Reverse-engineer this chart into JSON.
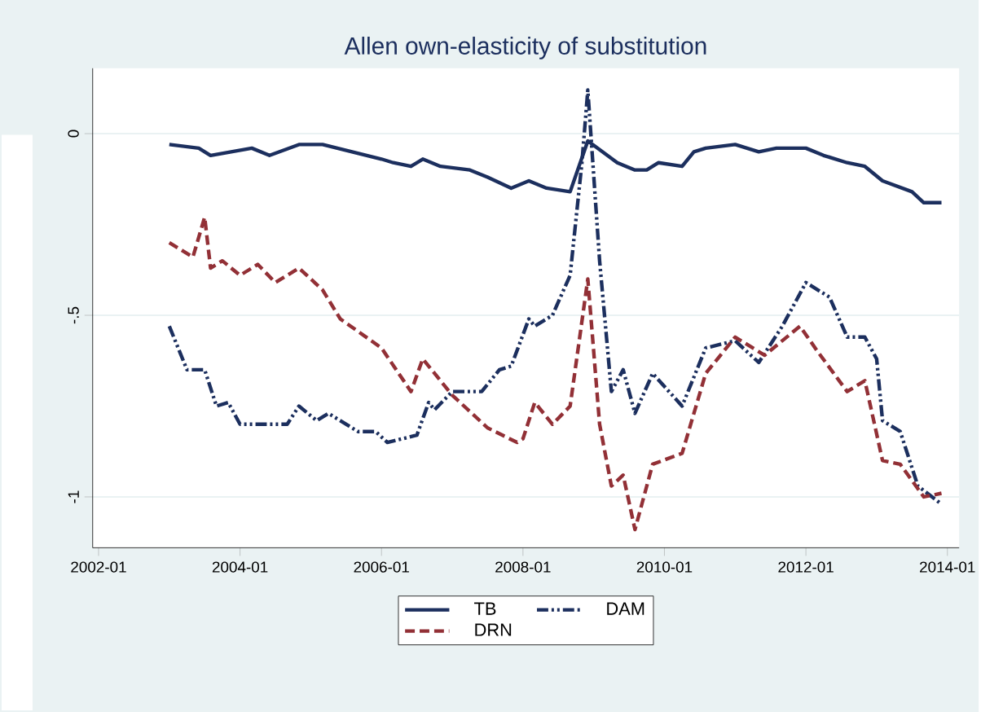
{
  "chart_data": {
    "type": "line",
    "title": "Allen own-elasticity of substitution",
    "xlim": [
      "2001-12",
      "2014-03"
    ],
    "xticks": [
      "2002-01",
      "2004-01",
      "2006-01",
      "2008-01",
      "2010-01",
      "2012-01",
      "2014-01"
    ],
    "ylim": [
      -1.14,
      0.18
    ],
    "yticks": [
      {
        "value": -1,
        "label": "-1"
      },
      {
        "value": -0.5,
        "label": "-.5"
      },
      {
        "value": 0,
        "label": "0"
      }
    ],
    "grid": "y",
    "legend": "bottom",
    "series": [
      {
        "name": "TB",
        "color": "#1c2f5e",
        "line_style": "solid",
        "x": [
          "2003-01",
          "2003-06",
          "2003-08",
          "2004-03",
          "2004-06",
          "2004-11",
          "2005-03",
          "2006-01",
          "2006-03",
          "2006-06",
          "2006-08",
          "2006-11",
          "2007-04",
          "2007-07",
          "2007-11",
          "2008-02",
          "2008-05",
          "2008-09",
          "2008-12",
          "2009-05",
          "2009-08",
          "2009-10",
          "2009-12",
          "2010-04",
          "2010-06",
          "2010-08",
          "2011-01",
          "2011-05",
          "2011-08",
          "2012-01",
          "2012-04",
          "2012-08",
          "2012-11",
          "2013-02",
          "2013-07",
          "2013-09",
          "2013-12"
        ],
        "values": [
          -0.03,
          -0.04,
          -0.06,
          -0.04,
          -0.06,
          -0.03,
          -0.03,
          -0.07,
          -0.08,
          -0.09,
          -0.07,
          -0.09,
          -0.1,
          -0.12,
          -0.15,
          -0.13,
          -0.15,
          -0.16,
          -0.02,
          -0.08,
          -0.1,
          -0.1,
          -0.08,
          -0.09,
          -0.05,
          -0.04,
          -0.03,
          -0.05,
          -0.04,
          -0.04,
          -0.06,
          -0.08,
          -0.09,
          -0.13,
          -0.16,
          -0.19,
          -0.19
        ]
      },
      {
        "name": "DAM",
        "color": "#1c2f5e",
        "line_style": "dashdot",
        "x": [
          "2003-01",
          "2003-04",
          "2003-07",
          "2003-09",
          "2003-11",
          "2004-01",
          "2004-06",
          "2004-09",
          "2004-11",
          "2005-02",
          "2005-04",
          "2005-09",
          "2005-12",
          "2006-02",
          "2006-07",
          "2006-09",
          "2006-10",
          "2007-01",
          "2007-06",
          "2007-09",
          "2007-11",
          "2008-02",
          "2008-03",
          "2008-06",
          "2008-09",
          "2008-11",
          "2008-12",
          "2009-02",
          "2009-04",
          "2009-06",
          "2009-08",
          "2009-11",
          "2010-04",
          "2010-08",
          "2011-01",
          "2011-05",
          "2011-09",
          "2012-01",
          "2012-05",
          "2012-08",
          "2012-11",
          "2013-01",
          "2013-02",
          "2013-05",
          "2013-08",
          "2013-12"
        ],
        "values": [
          -0.53,
          -0.65,
          -0.65,
          -0.75,
          -0.74,
          -0.8,
          -0.8,
          -0.8,
          -0.75,
          -0.79,
          -0.77,
          -0.82,
          -0.82,
          -0.85,
          -0.83,
          -0.74,
          -0.76,
          -0.71,
          -0.71,
          -0.65,
          -0.64,
          -0.51,
          -0.53,
          -0.5,
          -0.39,
          -0.08,
          0.12,
          -0.35,
          -0.71,
          -0.65,
          -0.77,
          -0.66,
          -0.75,
          -0.59,
          -0.57,
          -0.63,
          -0.53,
          -0.41,
          -0.45,
          -0.56,
          -0.56,
          -0.62,
          -0.79,
          -0.82,
          -0.97,
          -1.02
        ]
      },
      {
        "name": "DRN",
        "color": "#923036",
        "line_style": "dashed",
        "x": [
          "2003-01",
          "2003-05",
          "2003-07",
          "2003-08",
          "2003-10",
          "2004-01",
          "2004-04",
          "2004-07",
          "2004-11",
          "2005-03",
          "2005-06",
          "2006-01",
          "2006-06",
          "2006-08",
          "2007-01",
          "2007-07",
          "2007-12",
          "2008-01",
          "2008-03",
          "2008-06",
          "2008-09",
          "2008-12",
          "2009-02",
          "2009-04",
          "2009-06",
          "2009-08",
          "2009-11",
          "2010-04",
          "2010-08",
          "2011-01",
          "2011-06",
          "2011-12",
          "2012-03",
          "2012-08",
          "2012-11",
          "2013-02",
          "2013-05",
          "2013-09",
          "2013-12"
        ],
        "values": [
          -0.3,
          -0.34,
          -0.23,
          -0.37,
          -0.35,
          -0.39,
          -0.36,
          -0.41,
          -0.37,
          -0.43,
          -0.51,
          -0.59,
          -0.71,
          -0.62,
          -0.72,
          -0.81,
          -0.85,
          -0.84,
          -0.74,
          -0.8,
          -0.75,
          -0.4,
          -0.8,
          -0.97,
          -0.94,
          -1.09,
          -0.91,
          -0.88,
          -0.66,
          -0.56,
          -0.61,
          -0.53,
          -0.6,
          -0.71,
          -0.68,
          -0.9,
          -0.91,
          -1,
          -0.99
        ]
      }
    ]
  }
}
